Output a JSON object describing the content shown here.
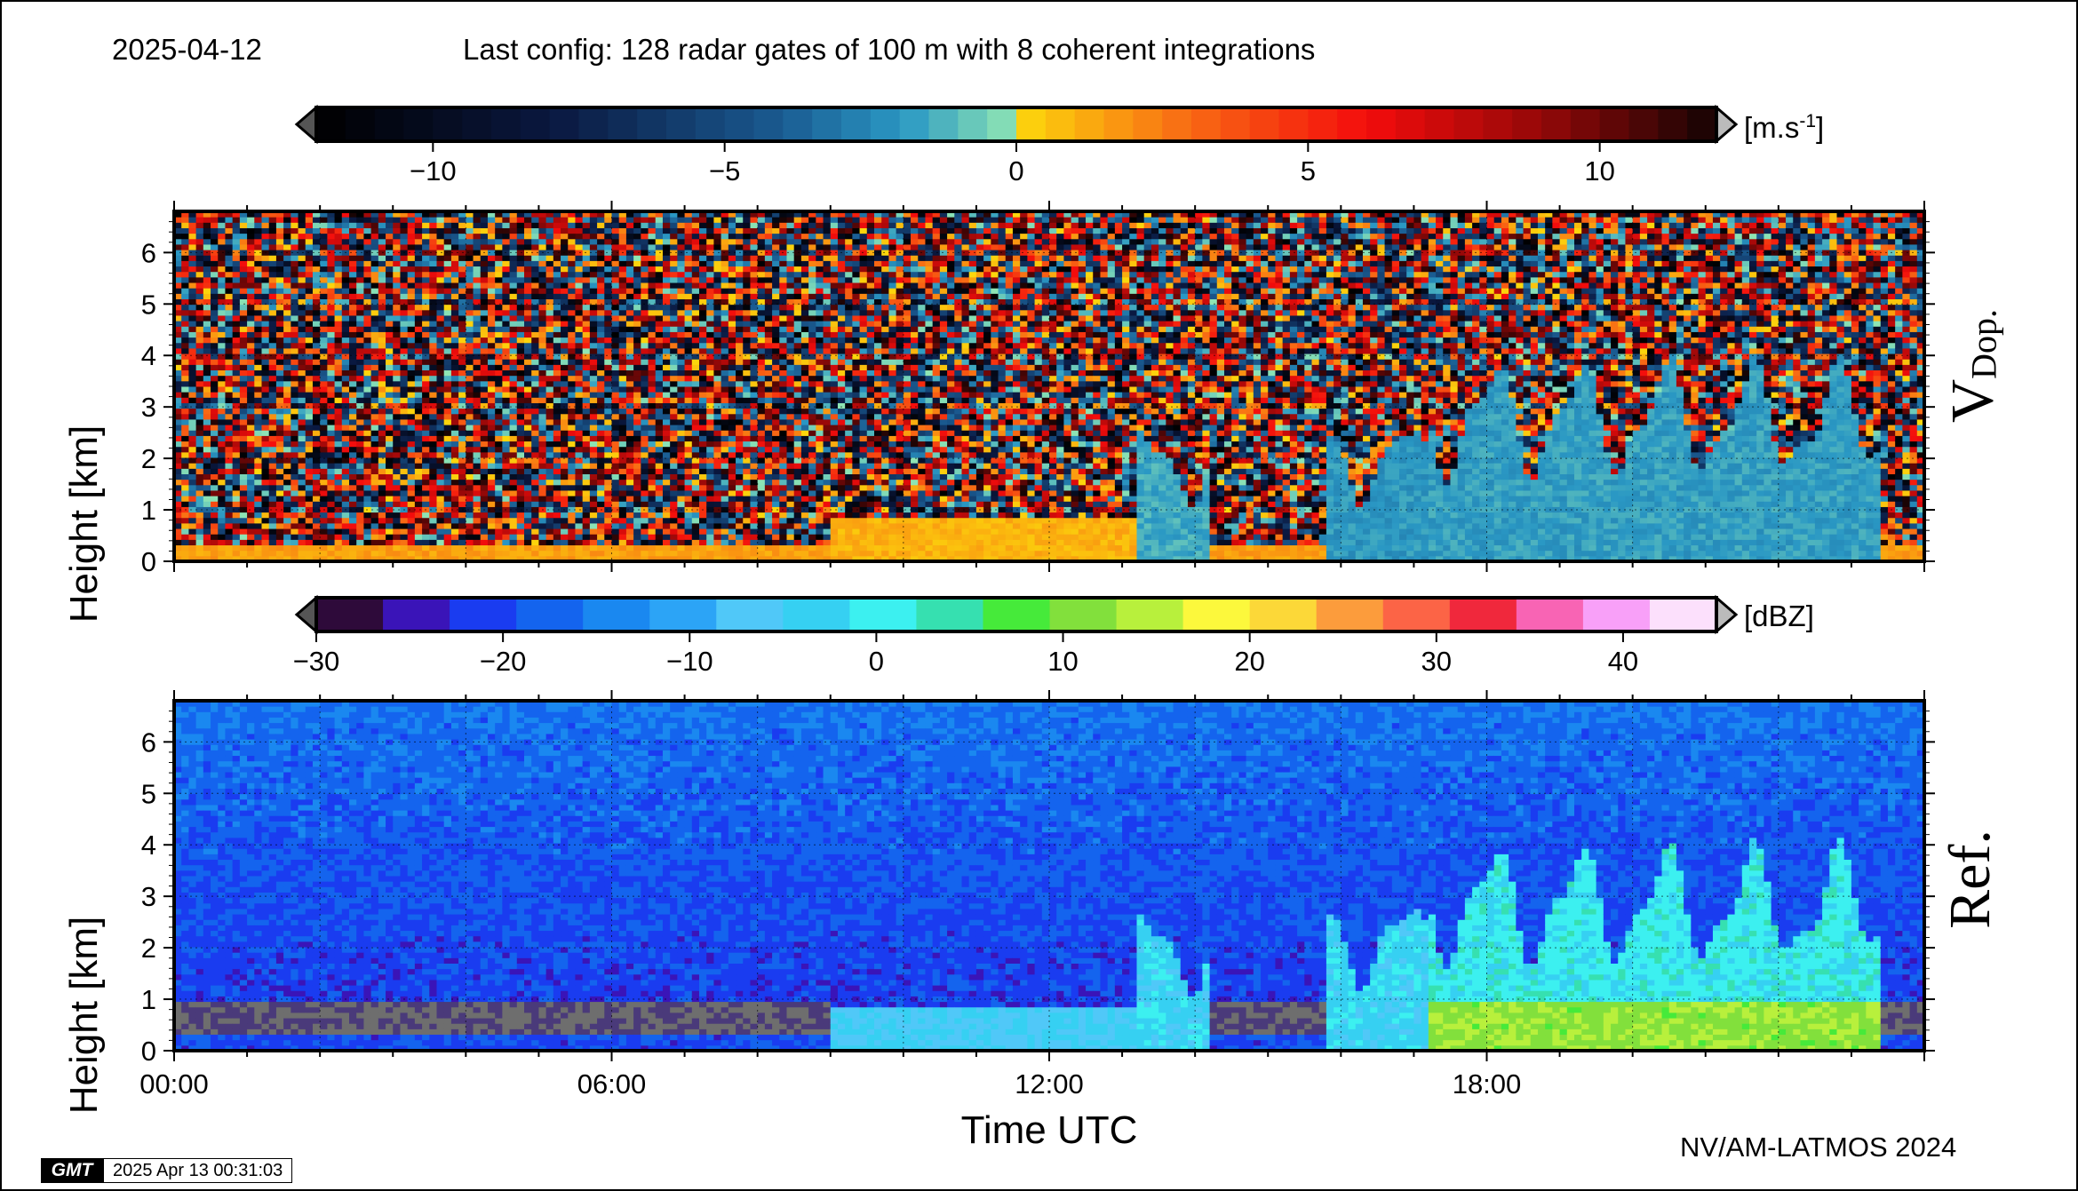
{
  "header": {
    "date": "2025-04-12",
    "config": "Last config: 128 radar gates of 100 m with 8 coherent integrations"
  },
  "footer": {
    "credit": "NV/AM-LATMOS 2024",
    "gmt_logo": "GMT",
    "timestamp": "2025 Apr 13 00:31:03"
  },
  "colorbars": {
    "velocity": {
      "unit_prefix": "[m.s",
      "unit_exp": "-1",
      "unit_suffix": "]",
      "range": [
        -12,
        12
      ],
      "ticks": [
        -10,
        -5,
        0,
        5,
        10
      ]
    },
    "reflectivity": {
      "unit": "[dBZ]",
      "range": [
        -30,
        45
      ],
      "ticks": [
        -30,
        -20,
        -10,
        0,
        10,
        20,
        30,
        40
      ],
      "colors": [
        "#2e0a3a",
        "#3a14b8",
        "#1a3cf0",
        "#1464ee",
        "#1a88f0",
        "#2ca4f6",
        "#50c8f8",
        "#36d0f2",
        "#3cf0f0",
        "#36e0b0",
        "#46ea3a",
        "#82e03c",
        "#b8f03c",
        "#fcf83c",
        "#fcd838",
        "#fc9c3c",
        "#fc6446",
        "#f0283c",
        "#f864b4",
        "#f8a0f8",
        "#fce0fc"
      ]
    }
  },
  "chart_data": [
    {
      "type": "heatmap",
      "panel_label": "V",
      "panel_label_sub": "Dop.",
      "ylabel": "Height [km]",
      "ylim": [
        0,
        6.8
      ],
      "yticks": [
        0,
        1,
        2,
        3,
        4,
        5,
        6
      ],
      "xlim": [
        0,
        24
      ],
      "grid": true,
      "features": [
        {
          "desc": "low-level echo",
          "t_start": 0,
          "t_end": 24,
          "z_top": 0.3,
          "value": 1.5
        },
        {
          "desc": "boundary layer echo",
          "t_start": 9,
          "t_end": 13.2,
          "z_top": 0.8,
          "value": 1.0
        },
        {
          "desc": "cloud",
          "t_start": 13.2,
          "t_end": 14.2,
          "z_top": 2.5,
          "value": -1.5
        },
        {
          "desc": "cloud",
          "t_start": 15.8,
          "t_end": 17.2,
          "z_top": 2.6,
          "value": -2.0
        },
        {
          "desc": "cloud",
          "t_start": 17.2,
          "t_end": 23.4,
          "z_top": 3.7,
          "value": -1.8
        }
      ]
    },
    {
      "type": "heatmap",
      "panel_label": "Ref.",
      "ylabel": "Height [km]",
      "xlabel": "Time UTC",
      "ylim": [
        0,
        6.8
      ],
      "yticks": [
        0,
        1,
        2,
        3,
        4,
        5,
        6
      ],
      "xlim": [
        0,
        24
      ],
      "xticks": [
        "00:00",
        "06:00",
        "12:00",
        "18:00"
      ],
      "grid": true,
      "features": [
        {
          "desc": "low-level echo",
          "t_start": 0,
          "t_end": 24,
          "z_top": 0.3,
          "value": -20
        },
        {
          "desc": "boundary layer echo",
          "t_start": 9,
          "t_end": 13.2,
          "z_top": 0.8,
          "value": -5
        },
        {
          "desc": "cloud",
          "t_start": 13.2,
          "t_end": 14.2,
          "z_top": 2.6,
          "value": -3
        },
        {
          "desc": "cloud",
          "t_start": 15.8,
          "t_end": 17.2,
          "z_top": 2.8,
          "value": -3
        },
        {
          "desc": "cloud",
          "t_start": 17.2,
          "t_end": 23.4,
          "z_top": 3.8,
          "value": 0
        },
        {
          "desc": "melting layer",
          "t_start": 17.2,
          "t_end": 23.4,
          "z_top": 1.0,
          "value": 12
        }
      ]
    }
  ]
}
